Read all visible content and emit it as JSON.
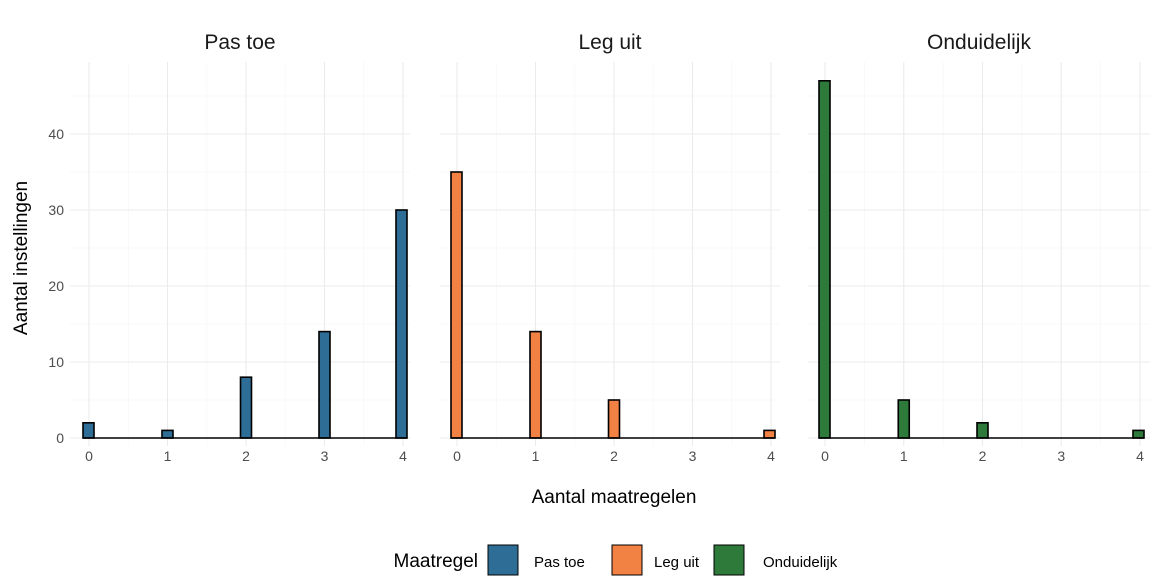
{
  "chart_data": {
    "type": "bar",
    "xlabel": "Aantal maatregelen",
    "ylabel": "Aantal instellingen",
    "ylim": [
      0,
      50
    ],
    "y_ticks": [
      0,
      10,
      20,
      30,
      40
    ],
    "grid": true,
    "legend": {
      "title": "Maatregel",
      "placement": "bottom",
      "entries": [
        {
          "name": "Pas toe",
          "color": "#2e6e96"
        },
        {
          "name": "Leg uit",
          "color": "#f28244"
        },
        {
          "name": "Onduidelijk",
          "color": "#2e7a3b"
        }
      ]
    },
    "facets": [
      {
        "title": "Pas toe",
        "color": "#2e6e96",
        "x_ticks": [
          "0",
          "1",
          "2",
          "3",
          "4"
        ],
        "bars": [
          {
            "x": 0,
            "value": 2
          },
          {
            "x": 1,
            "value": 1
          },
          {
            "x": 2,
            "value": 8
          },
          {
            "x": 3,
            "value": 14
          },
          {
            "x": 4,
            "value": 30
          }
        ]
      },
      {
        "title": "Leg uit",
        "color": "#f28244",
        "x_ticks": [
          "0",
          "1",
          "2",
          "3",
          "4"
        ],
        "bars": [
          {
            "x": 0,
            "value": 35
          },
          {
            "x": 1,
            "value": 14
          },
          {
            "x": 2,
            "value": 5
          },
          {
            "x": 4,
            "value": 1
          }
        ]
      },
      {
        "title": "Onduidelijk",
        "color": "#2e7a3b",
        "x_ticks": [
          "0",
          "1",
          "2",
          "3",
          "4"
        ],
        "bars": [
          {
            "x": 0,
            "value": 47
          },
          {
            "x": 1,
            "value": 5
          },
          {
            "x": 2,
            "value": 2
          },
          {
            "x": 4,
            "value": 1
          }
        ]
      }
    ]
  }
}
